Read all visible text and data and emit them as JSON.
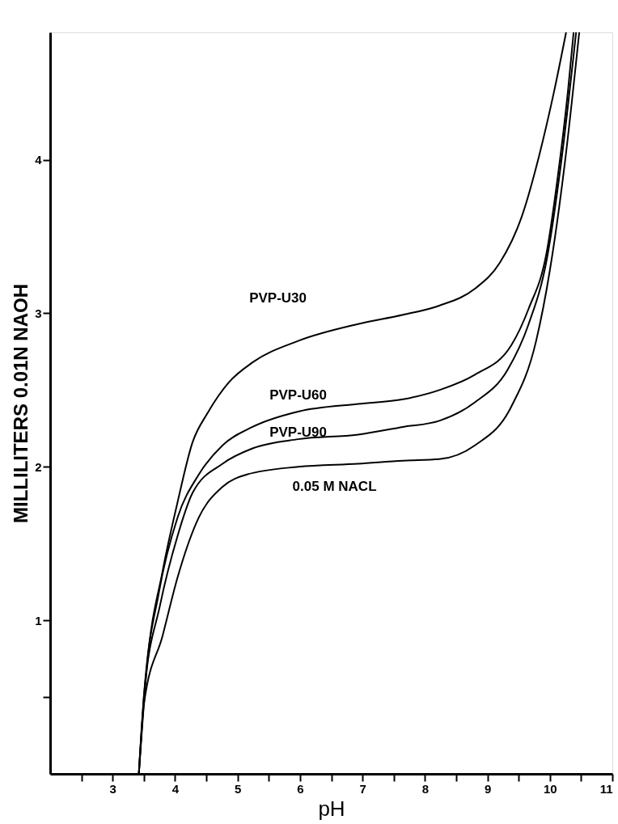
{
  "chart_data": {
    "type": "line",
    "xlabel": "pH",
    "ylabel": "MILLILITERS 0.01N NAOH",
    "xlim": [
      2,
      11
    ],
    "ylim": [
      0,
      4.83
    ],
    "xticks": [
      {
        "value": 2.5,
        "label": null
      },
      3,
      {
        "value": 3.5,
        "label": null
      },
      4,
      {
        "value": 4.5,
        "label": null
      },
      5,
      {
        "value": 5.5,
        "label": null
      },
      6,
      {
        "value": 6.5,
        "label": null
      },
      7,
      {
        "value": 7.5,
        "label": null
      },
      8,
      {
        "value": 8.5,
        "label": null
      },
      9,
      {
        "value": 9.5,
        "label": null
      },
      10,
      {
        "value": 10.5,
        "label": null
      },
      11
    ],
    "yticks": [
      {
        "value": 0.5,
        "label": null
      },
      1,
      2,
      3,
      4
    ],
    "grid": false,
    "legend": false,
    "marker": "none",
    "line_style": "solid",
    "series": [
      {
        "name": "PVP-U30",
        "color": "#000000",
        "x": [
          3.42,
          3.55,
          3.8,
          4.04,
          4.28,
          4.52,
          4.86,
          5.24,
          5.97,
          6.93,
          7.65,
          8.23,
          8.8,
          9.2,
          9.55,
          9.83,
          10.07,
          10.26
        ],
        "values": [
          0,
          0.7,
          1.32,
          1.77,
          2.16,
          2.35,
          2.55,
          2.68,
          2.82,
          2.93,
          2.99,
          3.05,
          3.16,
          3.33,
          3.63,
          4.03,
          4.45,
          4.83
        ]
      },
      {
        "name": "PVP-U60",
        "color": "#000000",
        "x": [
          3.42,
          3.5,
          3.74,
          4.04,
          4.38,
          4.76,
          5.24,
          5.97,
          6.93,
          7.65,
          8.23,
          8.8,
          9.38,
          9.66,
          9.95,
          10.12,
          10.29,
          10.38
        ],
        "values": [
          0,
          0.5,
          1.18,
          1.67,
          1.95,
          2.14,
          2.26,
          2.36,
          2.41,
          2.44,
          2.5,
          2.6,
          2.79,
          3.03,
          3.4,
          3.87,
          4.45,
          4.83
        ]
      },
      {
        "name": "PVP-U90",
        "color": "#000000",
        "x": [
          3.42,
          3.5,
          3.76,
          4.04,
          4.28,
          4.76,
          5.24,
          5.97,
          6.93,
          7.65,
          8.23,
          8.8,
          9.32,
          9.66,
          9.95,
          10.18,
          10.42
        ],
        "values": [
          0,
          0.5,
          1.1,
          1.55,
          1.83,
          2.02,
          2.12,
          2.18,
          2.21,
          2.26,
          2.3,
          2.42,
          2.63,
          2.93,
          3.35,
          3.98,
          4.83
        ]
      },
      {
        "name": "0.05 M NACL",
        "color": "#000000",
        "x": [
          3.42,
          3.5,
          3.8,
          4.04,
          4.38,
          4.76,
          5.15,
          5.97,
          6.93,
          7.65,
          8.23,
          8.8,
          9.38,
          9.78,
          10.0,
          10.24,
          10.47
        ],
        "values": [
          0,
          0.45,
          0.9,
          1.28,
          1.67,
          1.87,
          1.95,
          2.0,
          2.02,
          2.04,
          2.05,
          2.14,
          2.39,
          2.82,
          3.28,
          3.98,
          4.83
        ]
      }
    ]
  }
}
